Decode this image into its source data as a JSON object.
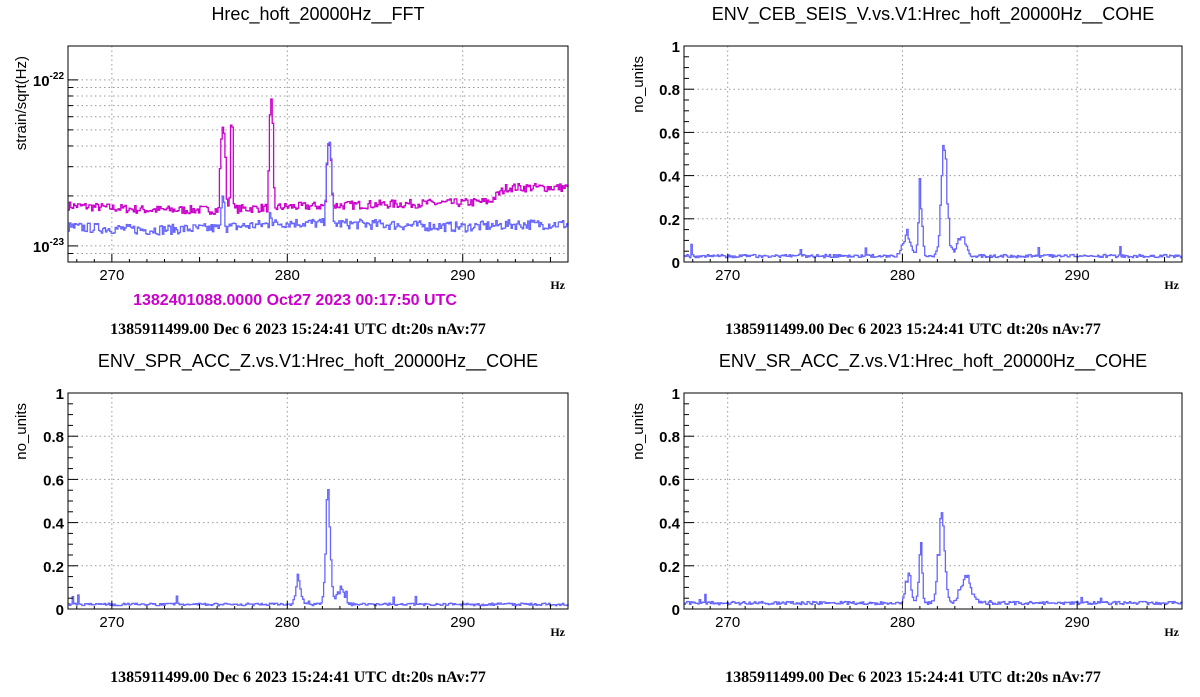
{
  "colors": {
    "blue": "#6666ff",
    "magenta": "#cc00cc",
    "grid": "#999999",
    "axis": "#000000"
  },
  "chart_data": [
    {
      "type": "line",
      "title": "Hrec_hoft_20000Hz__FFT",
      "ylabel": "strain/sqrt(Hz)",
      "xlabel": "Hz",
      "xlim": [
        267.5,
        296
      ],
      "ylim": [
        8e-24,
        1.6e-22
      ],
      "yscale": "log",
      "x_ticks": [
        270,
        280,
        290
      ],
      "y_ticks": [
        {
          "value": 1e-23,
          "base": "10",
          "exp": "-23"
        },
        {
          "value": 1e-22,
          "base": "10",
          "exp": "-22"
        }
      ],
      "grid": true,
      "reference_label": "1382401088.0000 Oct27 2023 00:17:50 UTC",
      "footer": "1385911499.00 Dec 6 2023 15:24:41 UTC dt:20s nAv:77",
      "series": [
        {
          "color": "#cc00cc",
          "baseline": [
            [
              267.5,
              1.75e-23
            ],
            [
              272,
              1.65e-23
            ],
            [
              276,
              1.65e-23
            ],
            [
              280,
              1.72e-23
            ],
            [
              285,
              1.78e-23
            ],
            [
              290,
              1.82e-23
            ],
            [
              291.5,
              1.85e-23
            ],
            [
              292.5,
              2.25e-23
            ],
            [
              296,
              2.25e-23
            ]
          ],
          "peaks": [
            [
              276.3,
              0.45,
              5.2e-23
            ],
            [
              276.8,
              0.22,
              6e-23
            ],
            [
              279.05,
              0.3,
              7.7e-23
            ],
            [
              282.35,
              0.45,
              4.2e-23
            ]
          ],
          "noise": 0.06
        },
        {
          "color": "#6666ff",
          "baseline": [
            [
              267.5,
              1.3e-23
            ],
            [
              272,
              1.25e-23
            ],
            [
              276,
              1.28e-23
            ],
            [
              280,
              1.38e-23
            ],
            [
              285,
              1.35e-23
            ],
            [
              290,
              1.3e-23
            ],
            [
              293,
              1.35e-23
            ],
            [
              296,
              1.35e-23
            ]
          ],
          "peaks": [
            [
              276.3,
              0.45,
              2e-23
            ],
            [
              279.0,
              0.4,
              1.6e-23
            ],
            [
              282.35,
              0.45,
              4.3e-23
            ]
          ],
          "noise": 0.07
        }
      ]
    },
    {
      "type": "line",
      "title": "ENV_CEB_SEIS_V.vs.V1:Hrec_hoft_20000Hz__COHE",
      "ylabel": "no_units",
      "xlabel": "Hz",
      "xlim": [
        267.5,
        296
      ],
      "ylim": [
        0,
        1
      ],
      "x_ticks": [
        270,
        280,
        290
      ],
      "y_ticks": [
        0,
        0.2,
        0.4,
        0.6,
        0.8,
        1
      ],
      "grid": true,
      "footer": "1385911499.00 Dec 6 2023 15:24:41 UTC dt:20s nAv:77",
      "series": [
        {
          "color": "#6666ff",
          "base": 0.02,
          "noise": 0.015,
          "peaks": [
            [
              280.2,
              0.55,
              0.12
            ],
            [
              281.0,
              0.25,
              0.4
            ],
            [
              282.35,
              0.45,
              0.58
            ],
            [
              283.3,
              0.6,
              0.13
            ]
          ]
        }
      ]
    },
    {
      "type": "line",
      "title": "ENV_SPR_ACC_Z.vs.V1:Hrec_hoft_20000Hz__COHE",
      "ylabel": "no_units",
      "xlabel": "Hz",
      "xlim": [
        267.5,
        296
      ],
      "ylim": [
        0,
        1
      ],
      "x_ticks": [
        270,
        280,
        290
      ],
      "y_ticks": [
        0,
        0.2,
        0.4,
        0.6,
        0.8,
        1
      ],
      "grid": true,
      "footer": "1385911499.00 Dec 6 2023 15:24:41 UTC dt:20s nAv:77",
      "series": [
        {
          "color": "#6666ff",
          "base": 0.015,
          "noise": 0.012,
          "peaks": [
            [
              280.6,
              0.4,
              0.12
            ],
            [
              282.3,
              0.35,
              0.56
            ],
            [
              283.0,
              0.5,
              0.1
            ]
          ]
        }
      ]
    },
    {
      "type": "line",
      "title": "ENV_SR_ACC_Z.vs.V1:Hrec_hoft_20000Hz__COHE",
      "ylabel": "no_units",
      "xlabel": "Hz",
      "xlim": [
        267.5,
        296
      ],
      "ylim": [
        0,
        1
      ],
      "x_ticks": [
        270,
        280,
        290
      ],
      "y_ticks": [
        0,
        0.2,
        0.4,
        0.6,
        0.8,
        1
      ],
      "grid": true,
      "footer": "1385911499.00 Dec 6 2023 15:24:41 UTC dt:20s nAv:77",
      "series": [
        {
          "color": "#6666ff",
          "base": 0.02,
          "noise": 0.015,
          "peaks": [
            [
              280.3,
              0.4,
              0.16
            ],
            [
              281.0,
              0.25,
              0.3
            ],
            [
              282.2,
              0.45,
              0.47
            ],
            [
              283.6,
              0.8,
              0.14
            ]
          ]
        }
      ]
    }
  ]
}
